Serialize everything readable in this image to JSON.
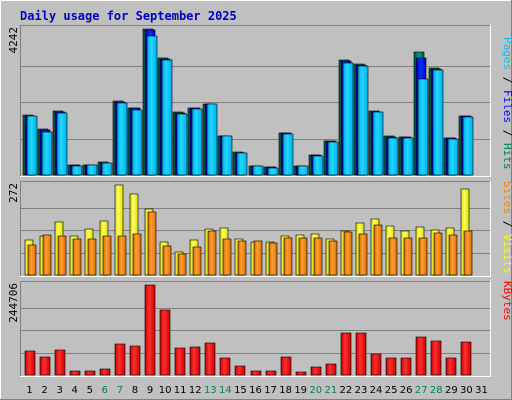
{
  "chart_data": {
    "type": "bar",
    "title": "Daily usage for September 2025",
    "colors": {
      "hits": "#00805c",
      "files": "#0000ff",
      "pages": "#00c0ff",
      "visits": "#ffff00",
      "sites": "#ff8000",
      "kbytes": "#ff0000",
      "weekend": "#00805c",
      "weekday": "#000000"
    },
    "x": [
      1,
      2,
      3,
      4,
      5,
      6,
      7,
      8,
      9,
      10,
      11,
      12,
      13,
      14,
      15,
      16,
      17,
      18,
      19,
      20,
      21,
      22,
      23,
      24,
      25,
      26,
      27,
      28,
      29,
      30,
      31
    ],
    "weekend_days": [
      6,
      7,
      13,
      14,
      20,
      21,
      27,
      28
    ],
    "panels": [
      {
        "name": "hits-files-pages",
        "ymax": 4242,
        "ymax_label": "4242",
        "legend": [
          "Pages",
          "Files",
          "Hits"
        ],
        "series": [
          {
            "name": "Hits",
            "values": [
              1730,
              1330,
              1850,
              300,
              300,
              370,
              2150,
              1960,
              4242,
              3400,
              1820,
              1950,
              2070,
              1140,
              660,
              270,
              230,
              1230,
              270,
              590,
              1000,
              3330,
              3230,
              1850,
              1120,
              1110,
              3570,
              3120,
              1080,
              1710,
              0
            ]
          },
          {
            "name": "Files",
            "values": [
              1720,
              1300,
              1840,
              290,
              290,
              360,
              2130,
              1950,
              4220,
              3380,
              1800,
              1940,
              2060,
              1130,
              650,
              260,
              220,
              1220,
              260,
              580,
              990,
              3300,
              3200,
              1840,
              1110,
              1100,
              3400,
              3090,
              1070,
              1700,
              0
            ]
          },
          {
            "name": "Pages",
            "values": [
              1700,
              1250,
              1800,
              250,
              280,
              350,
              2100,
              1900,
              4050,
              3350,
              1760,
              1920,
              2050,
              1130,
              630,
              250,
              210,
              1200,
              250,
              560,
              950,
              3250,
              3180,
              1820,
              1080,
              1080,
              2800,
              3040,
              1050,
              1680,
              0
            ]
          }
        ]
      },
      {
        "name": "visits-sites",
        "ymax": 272,
        "ymax_label": "272",
        "legend": [
          "Sites",
          "/",
          "Visits"
        ],
        "series": [
          {
            "name": "Visits",
            "values": [
              105,
              119,
              160,
              117,
              138,
              162,
              272,
              245,
              200,
              99,
              70,
              105,
              139,
              142,
              109,
              101,
              100,
              117,
              122,
              124,
              110,
              133,
              158,
              170,
              149,
              134,
              144,
              136,
              143,
              260,
              0
            ]
          },
          {
            "name": "Sites",
            "values": [
              92,
              122,
              117,
              110,
              109,
              117,
              117,
              123,
              190,
              89,
              63,
              84,
              134,
              110,
              102,
              103,
              97,
              113,
              112,
              113,
              104,
              130,
              123,
              152,
              112,
              113,
              111,
              127,
              121,
              134,
              0
            ]
          }
        ]
      },
      {
        "name": "kbytes",
        "ymax": 244706,
        "ymax_label": "244706",
        "legend": [
          "KBytes"
        ],
        "series": [
          {
            "name": "KBytes",
            "values": [
              66000,
              50000,
              68000,
              10000,
              12000,
              17000,
              83000,
              78000,
              244706,
              177000,
              74000,
              76000,
              86000,
              45000,
              25000,
              10000,
              10000,
              50000,
              9000,
              21000,
              30000,
              114000,
              114000,
              56000,
              46000,
              47000,
              104000,
              93000,
              45000,
              89000,
              0
            ]
          }
        ]
      }
    ]
  }
}
